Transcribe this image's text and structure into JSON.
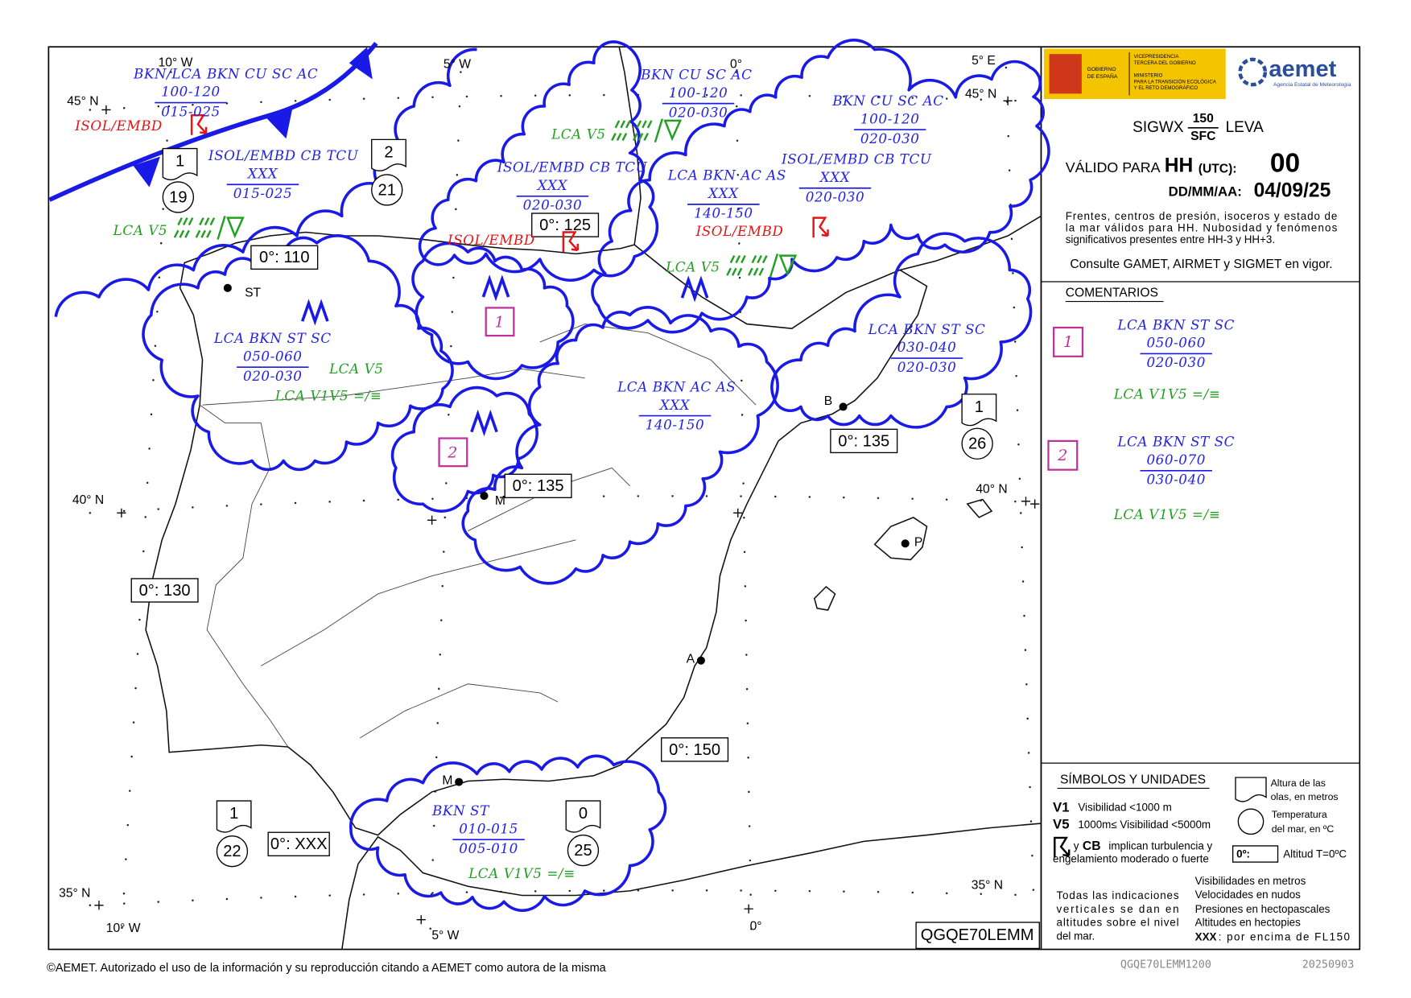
{
  "header": {
    "logo": {
      "government": [
        "GOBIERNO",
        "DE ESPAÑA"
      ],
      "vicepresidency": [
        "VICEPRESIDENCIA",
        "TERCERA DEL GOBIERNO"
      ],
      "ministry": [
        "MINISTERIO",
        "PARA LA TRANSICIÓN ECOLÓGICA",
        "Y EL RETO DEMOGRÁFICO"
      ],
      "agency": "aemet",
      "agency_full": "Agencia Estatal de Meteorología"
    },
    "product": "SIGWX",
    "level_top": "150",
    "level_bottom": "SFC",
    "region": "LEVA",
    "valid_label": "VÁLIDO PARA",
    "valid_hh": "HH",
    "valid_utc": "(UTC):",
    "valid_hour": "00",
    "date_label": "DD/MM/AA:",
    "date": "04/09/25",
    "description": [
      "Frentes, centros de presión, isoceros y estado de",
      "la mar válidos para HH. Nubosidad y fenómenos",
      "significativos presentes entre HH-3 y HH+3."
    ],
    "consult": "Consulte GAMET, AIRMET y SIGMET en vigor."
  },
  "comments": {
    "title": "COMENTARIOS",
    "items": [
      {
        "number": "1",
        "cloud": "LCA BKN ST SC",
        "top": "050-060",
        "base": "020-030",
        "visibility": "LCA  V1V5 =/≡"
      },
      {
        "number": "2",
        "cloud": "LCA BKN ST SC",
        "top": "060-070",
        "base": "030-040",
        "visibility": "LCA  V1V5 =/≡"
      }
    ]
  },
  "symbols": {
    "title": "SÍMBOLOS Y UNIDADES",
    "v1": {
      "code": "V1",
      "text": "Visibilidad <1000 m"
    },
    "v5": {
      "code": "V5",
      "text": "1000m≤ Visibilidad <5000m"
    },
    "turbulence": {
      "connector": "y",
      "code": "CB",
      "lines": [
        "implican turbulencia y",
        "engelamiento moderado o fuerte"
      ]
    },
    "wave_height": [
      "Altura de las",
      "olas, en metros"
    ],
    "sea_temperature": [
      "Temperatura",
      "del mar, en ºC"
    ],
    "freezing": {
      "code": "0º:",
      "text": "Altitud T=0ºC"
    },
    "vertical_note": [
      "Todas las indicaciones",
      "verticales se dan en",
      "altitudes sobre el nivel",
      "del mar."
    ],
    "units": [
      "Visibilidades en metros",
      "Velocidades en nudos",
      "Presiones en hectopascales",
      "Altitudes en hectopies"
    ],
    "xxx": {
      "code": "XXX",
      "text": ": por encima de FL150"
    }
  },
  "map": {
    "graticule_labels": [
      "10° W",
      "5° W",
      "0°",
      "5° E",
      "45° N",
      "45° N",
      "40° N",
      "40° N",
      "35° N",
      "35° N",
      "10° W",
      "5° W",
      "0°"
    ],
    "cities": [
      "ST",
      "B",
      "M",
      "P",
      "A",
      "M"
    ],
    "freezing_levels": [
      "0°: 110",
      "0°: 125",
      "0°: 135",
      "0°: 135",
      "0°: 130",
      "0°: 150",
      "0°: XXX"
    ],
    "sea_states": [
      {
        "wave": "1",
        "temperature": "19"
      },
      {
        "wave": "2",
        "temperature": "21"
      },
      {
        "wave": "1",
        "temperature": "26"
      },
      {
        "wave": "1",
        "temperature": "22"
      },
      {
        "wave": "0",
        "temperature": "25"
      }
    ],
    "cloud_labels": [
      {
        "lines": [
          "BKN/LCA BKN CU SC AC",
          "100-120",
          "015-025"
        ]
      },
      {
        "lines": [
          "ISOL/EMBD CB TCU",
          "XXX",
          "015-025"
        ]
      },
      {
        "lines": [
          "BKN CU SC AC",
          "100-120",
          "020-030"
        ]
      },
      {
        "lines": [
          "ISOL/EMBD CB TCU",
          "XXX",
          "020-030"
        ]
      },
      {
        "lines": [
          "LCA BKN AC AS",
          "XXX",
          "140-150"
        ]
      },
      {
        "lines": [
          "BKN CU SC AC",
          "100-120",
          "020-030"
        ]
      },
      {
        "lines": [
          "ISOL/EMBD CB TCU",
          "XXX",
          "020-030"
        ]
      },
      {
        "lines": [
          "LCA BKN ST SC",
          "050-060",
          "020-030"
        ]
      },
      {
        "lines": [
          "LCA BKN AC AS",
          "XXX",
          "140-150"
        ]
      },
      {
        "lines": [
          "LCA BKN ST SC",
          "030-040",
          "020-030"
        ]
      },
      {
        "lines": [
          "BKN ST",
          "010-015",
          "005-010"
        ]
      }
    ],
    "icing_labels": [
      "ISOL/EMBD",
      "ISOL/EMBD",
      "ISOL/EMBD"
    ],
    "visibility_labels": [
      "LCA  V5",
      "LCA  V5",
      "LCA  V5",
      "LCA  V5",
      "LCA   V1V5 =/≡",
      "LCA   V1V5 =/≡"
    ],
    "area_numbers": [
      "1",
      "2"
    ],
    "bulletin": "QGQE70LEMM"
  },
  "footer": {
    "copyright": "©AEMET. Autorizado el uso de la información y su reproducción citando a AEMET como autora de la misma",
    "code": "QGQE70LEMM1200",
    "date": "20250903"
  }
}
